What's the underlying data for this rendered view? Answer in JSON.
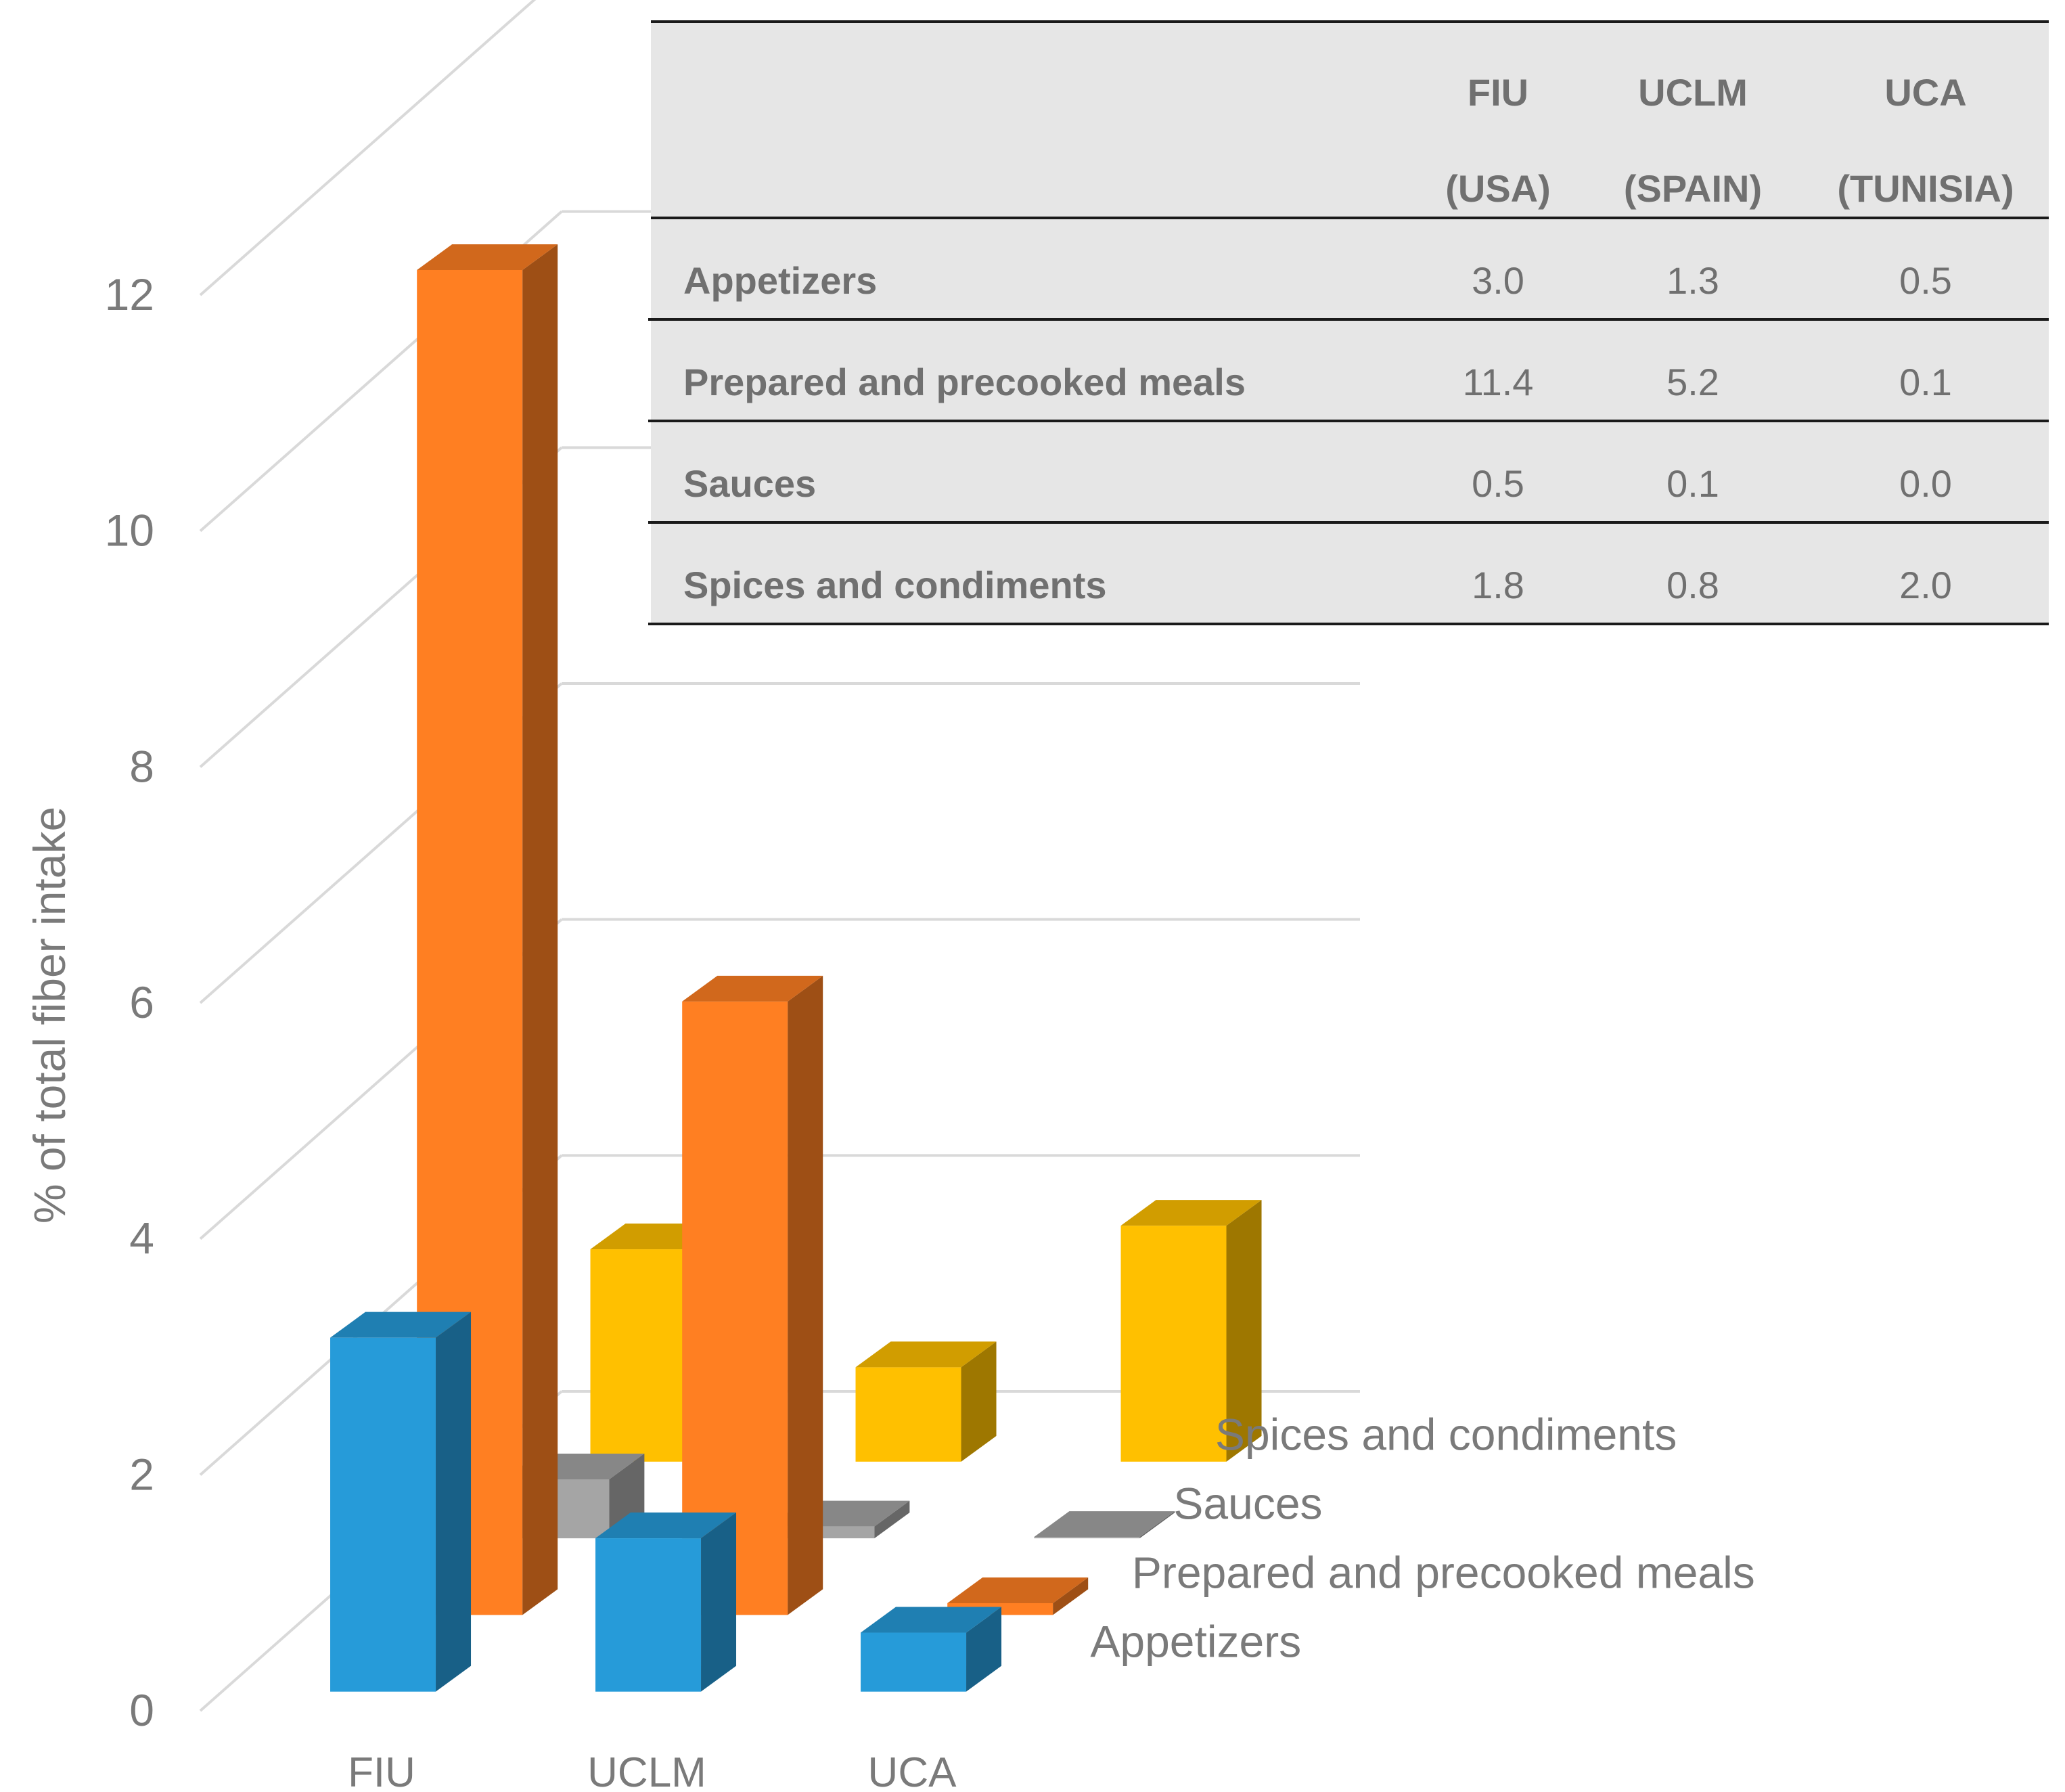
{
  "chart_data": {
    "type": "bar",
    "style": "3d-column",
    "ylabel": "% of total fiber intake",
    "ylim": [
      0,
      12
    ],
    "yticks": [
      0,
      2,
      4,
      6,
      8,
      10,
      12
    ],
    "grid": true,
    "categories": [
      "FIU",
      "UCLM",
      "UCA"
    ],
    "series": [
      {
        "name": "Appetizers",
        "values": [
          3.0,
          1.3,
          0.5
        ],
        "color": "#269BD9"
      },
      {
        "name": "Prepared and precooked meals",
        "values": [
          11.4,
          5.2,
          0.1
        ],
        "color": "#FF7F22"
      },
      {
        "name": "Sauces",
        "values": [
          0.5,
          0.1,
          0.0
        ],
        "color": "#A5A5A5"
      },
      {
        "name": "Spices and condiments",
        "values": [
          1.8,
          0.8,
          2.0
        ],
        "color": "#FFC000"
      }
    ],
    "table": {
      "header_top": [
        "FIU",
        "UCLM",
        "UCA"
      ],
      "header_bottom": [
        "(USA)",
        "(SPAIN)",
        "(TUNISIA)"
      ],
      "rows": [
        {
          "label": "Appetizers",
          "cells": [
            "3.0",
            "1.3",
            "0.5"
          ]
        },
        {
          "label": "Prepared and precooked meals",
          "cells": [
            "11.4",
            "5.2",
            "0.1"
          ]
        },
        {
          "label": "Sauces",
          "cells": [
            "0.5",
            "0.1",
            "0.0"
          ]
        },
        {
          "label": "Spices and condiments",
          "cells": [
            "1.8",
            "0.8",
            "2.0"
          ]
        }
      ]
    }
  }
}
